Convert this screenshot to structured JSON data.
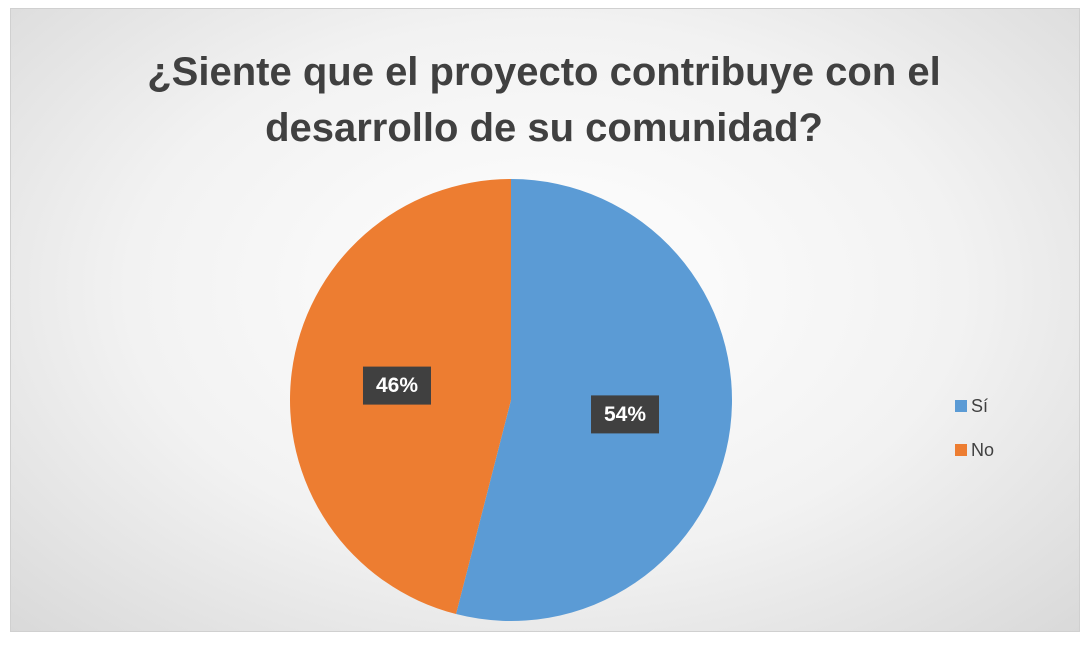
{
  "chart_data": {
    "type": "pie",
    "title": "¿Siente que el proyecto contribuye con el desarrollo de su comunidad?",
    "categories": [
      "Sí",
      "No"
    ],
    "values": [
      54,
      46
    ],
    "value_labels": [
      "54%",
      "46%"
    ],
    "colors": [
      "#5b9bd5",
      "#ed7d31"
    ],
    "legend": "right"
  }
}
